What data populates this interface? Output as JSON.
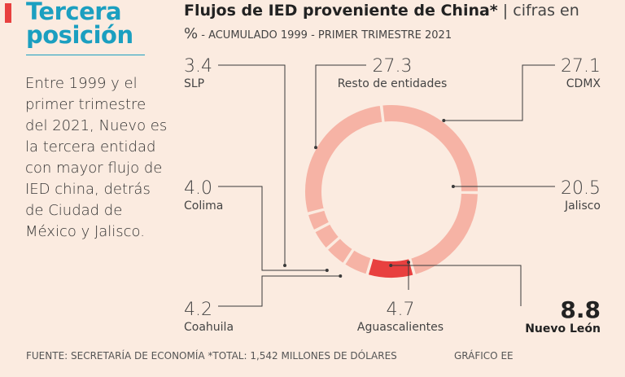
{
  "side": {
    "title_line1": "Tercera",
    "title_line2": "posición",
    "text": "Entre 1999 y el primer trimestre del 2021, Nuevo es la tercera entidad con mayor flujo de IED china, detrás de Ciudad de México y Jalisco."
  },
  "colors": {
    "accent": "#e8403f",
    "title_blue": "#1b9fc0",
    "segment": "#f6b3a5",
    "highlight": "#e8403f",
    "background": "#fbebe0"
  },
  "chart_data": {
    "type": "pie",
    "title_bold": "Flujos de IED proveniente de China*",
    "title_sep": "|",
    "title_light": "cifras en",
    "subtitle_pct": "%",
    "subtitle": " - ACUMULADO 1999 - PRIMER TRIMESTRE 2021",
    "slices": [
      {
        "key": "resto",
        "label": "Resto de entidades",
        "value_text": "27.3",
        "value": 27.3
      },
      {
        "key": "cdmx",
        "label": "CDMX",
        "value_text": "27.1",
        "value": 27.1
      },
      {
        "key": "jalisco",
        "label": "Jalisco",
        "value_text": "20.5",
        "value": 20.5
      },
      {
        "key": "nl",
        "label": "Nuevo León",
        "value_text": "8.8",
        "value": 8.8,
        "highlight": true
      },
      {
        "key": "ags",
        "label": "Aguascalientes",
        "value_text": "4.7",
        "value": 4.7
      },
      {
        "key": "coah",
        "label": "Coahuila",
        "value_text": "4.2",
        "value": 4.2
      },
      {
        "key": "colima",
        "label": "Colima",
        "value_text": "4.0",
        "value": 4.0
      },
      {
        "key": "slp",
        "label": "SLP",
        "value_text": "3.4",
        "value": 3.4
      }
    ]
  },
  "footer": {
    "source": "FUENTE: SECRETARÍA DE ECONOMÍA *TOTAL: 1,542 MILLONES DE DÓLARES",
    "credit": "GRÁFICO EE"
  }
}
